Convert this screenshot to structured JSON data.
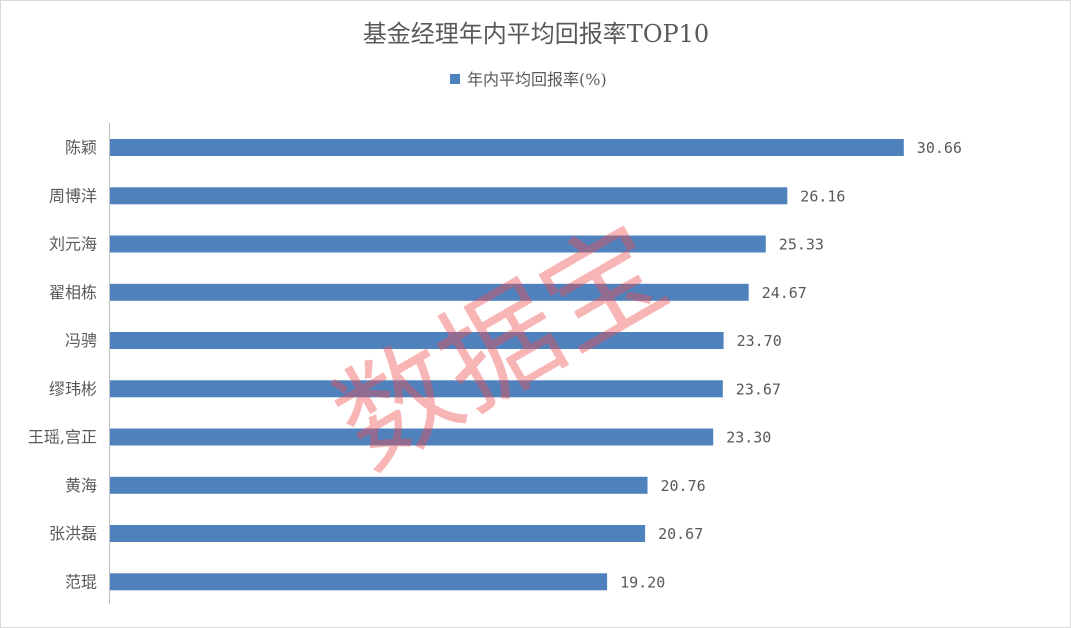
{
  "chart_data": {
    "type": "bar",
    "orientation": "horizontal",
    "title": "基金经理年内平均回报率TOP10",
    "legend_position": "top",
    "grid": false,
    "categories": [
      "陈颖",
      "周博洋",
      "刘元海",
      "翟相栋",
      "冯骋",
      "缪玮彬",
      "王瑶,宫正",
      "黄海",
      "张洪磊",
      "范琨"
    ],
    "series": [
      {
        "name": "年内平均回报率(%)",
        "values": [
          30.66,
          26.16,
          25.33,
          24.67,
          23.7,
          23.67,
          23.3,
          20.76,
          20.67,
          19.2
        ],
        "labels": [
          "30.66",
          "26.16",
          "25.33",
          "24.67",
          "23.70",
          "23.67",
          "23.30",
          "20.76",
          "20.67",
          "19.20"
        ],
        "color": "#4f81bd"
      }
    ],
    "xlim": [
      0,
      36
    ]
  },
  "watermark": "数据宝",
  "colors": {
    "bar": "#4f81bd",
    "text": "#595959",
    "axis": "#bfbfbf",
    "watermark": "#ef4f52"
  }
}
